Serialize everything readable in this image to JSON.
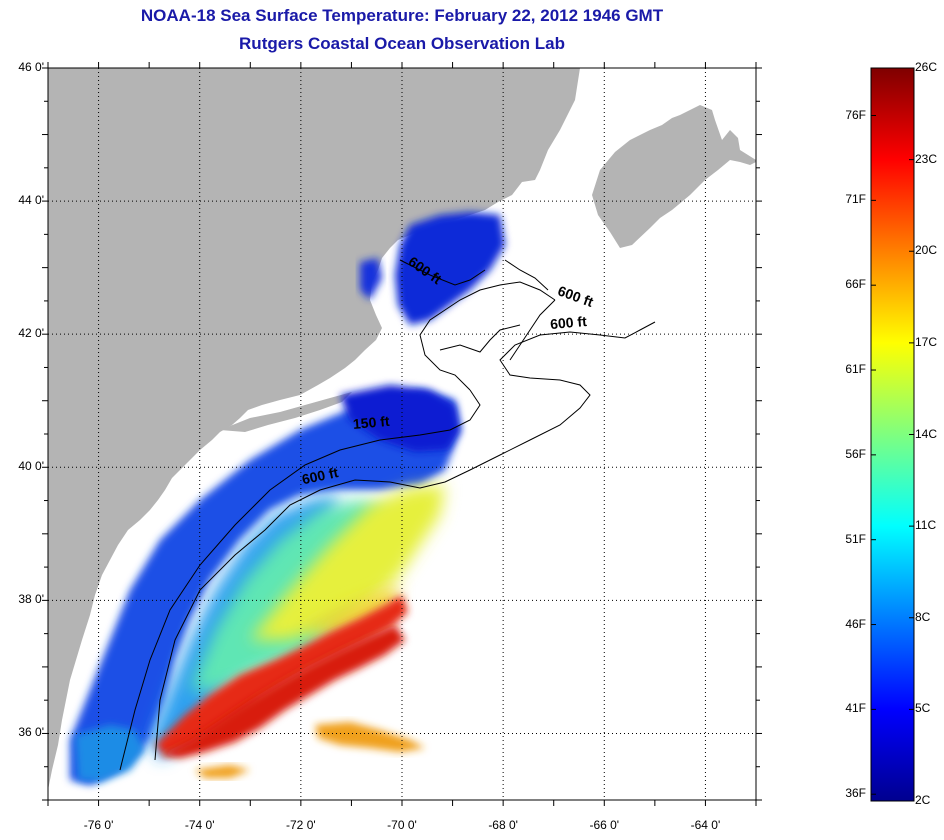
{
  "title": {
    "line1": "NOAA-18 Sea Surface Temperature:  February 22, 2012 1946 GMT",
    "line2": "Rutgers Coastal Ocean Observation Lab"
  },
  "map": {
    "lon_range": [
      -77,
      -63
    ],
    "lat_range": [
      35,
      46
    ],
    "lat_labels": [
      {
        "value": 46,
        "text": "46 0'"
      },
      {
        "value": 44,
        "text": "44 0'"
      },
      {
        "value": 42,
        "text": "42 0'"
      },
      {
        "value": 40,
        "text": "40 0'"
      },
      {
        "value": 38,
        "text": "38 0'"
      },
      {
        "value": 36,
        "text": "36 0'"
      }
    ],
    "lon_labels": [
      {
        "value": -76,
        "text": "-76 0'"
      },
      {
        "value": -74,
        "text": "-74 0'"
      },
      {
        "value": -72,
        "text": "-72 0'"
      },
      {
        "value": -70,
        "text": "-70 0'"
      },
      {
        "value": -68,
        "text": "-68 0'"
      },
      {
        "value": -66,
        "text": "-66 0'"
      },
      {
        "value": -64,
        "text": "-64 0'"
      }
    ],
    "grid": "dotted",
    "land_color": "#b4b4b4",
    "no_data_color": "#ffffff",
    "contour_labels": [
      {
        "text": "600 ft",
        "lon": -69.6,
        "lat": 42.9,
        "angle": 35
      },
      {
        "text": "600 ft",
        "lon": -66.6,
        "lat": 42.5,
        "angle": 20
      },
      {
        "text": "600 ft",
        "lon": -66.7,
        "lat": 42.1,
        "angle": -5
      },
      {
        "text": "150 ft",
        "lon": -70.6,
        "lat": 40.6,
        "angle": -5
      },
      {
        "text": "600 ft",
        "lon": -71.6,
        "lat": 39.8,
        "angle": -12
      }
    ]
  },
  "colorbar": {
    "min_c": 2,
    "max_c": 26,
    "celsius_labels": [
      "26C",
      "23C",
      "20C",
      "17C",
      "14C",
      "11C",
      "8C",
      "5C",
      "2C"
    ],
    "fahrenheit_labels": [
      "76F",
      "71F",
      "66F",
      "61F",
      "56F",
      "51F",
      "46F",
      "41F",
      "36F"
    ],
    "colors": [
      "#00008f",
      "#0000ff",
      "#007fff",
      "#00ffff",
      "#7fff7f",
      "#ffff00",
      "#ff7f00",
      "#ff0000",
      "#7f0000"
    ]
  }
}
